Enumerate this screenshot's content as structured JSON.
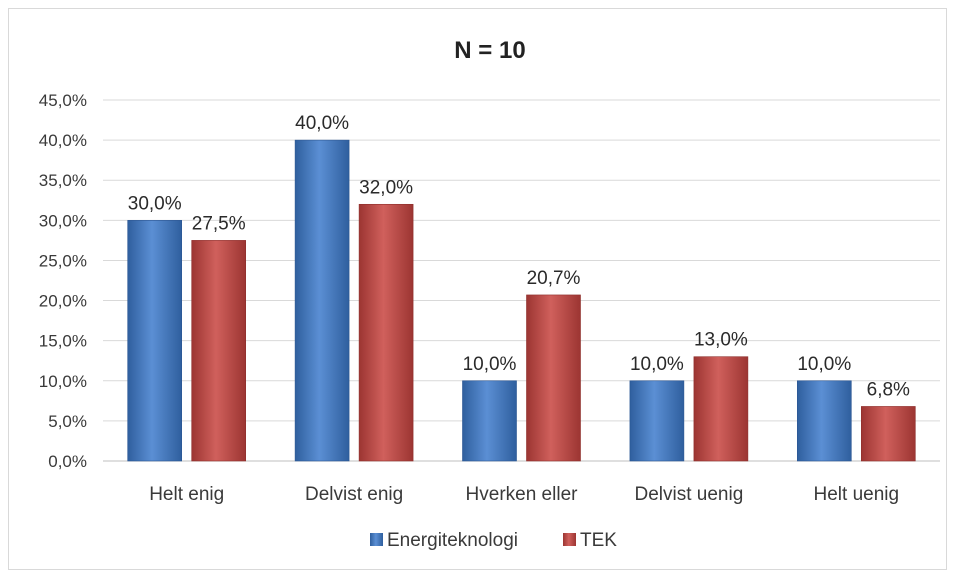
{
  "chart_data": {
    "type": "bar",
    "title": "N = 10",
    "categories": [
      "Helt enig",
      "Delvist enig",
      "Hverken eller",
      "Delvist uenig",
      "Helt uenig"
    ],
    "series": [
      {
        "name": "Energiteknologi",
        "values": [
          30.0,
          40.0,
          10.0,
          10.0,
          10.0
        ],
        "labels": [
          "30,0%",
          "40,0%",
          "10,0%",
          "10,0%",
          "10,0%"
        ],
        "color": "#4a7ec4"
      },
      {
        "name": "TEK",
        "values": [
          27.5,
          32.0,
          20.7,
          13.0,
          6.8
        ],
        "labels": [
          "27,5%",
          "32,0%",
          "20,7%",
          "13,0%",
          "6,8%"
        ],
        "color": "#c0504d"
      }
    ],
    "ylim": [
      0,
      45
    ],
    "yticks": [
      0,
      5,
      10,
      15,
      20,
      25,
      30,
      35,
      40,
      45
    ],
    "ytick_labels": [
      "0,0%",
      "5,0%",
      "10,0%",
      "15,0%",
      "20,0%",
      "25,0%",
      "30,0%",
      "35,0%",
      "40,0%",
      "45,0%"
    ],
    "grid": true,
    "legend_position": "bottom"
  }
}
